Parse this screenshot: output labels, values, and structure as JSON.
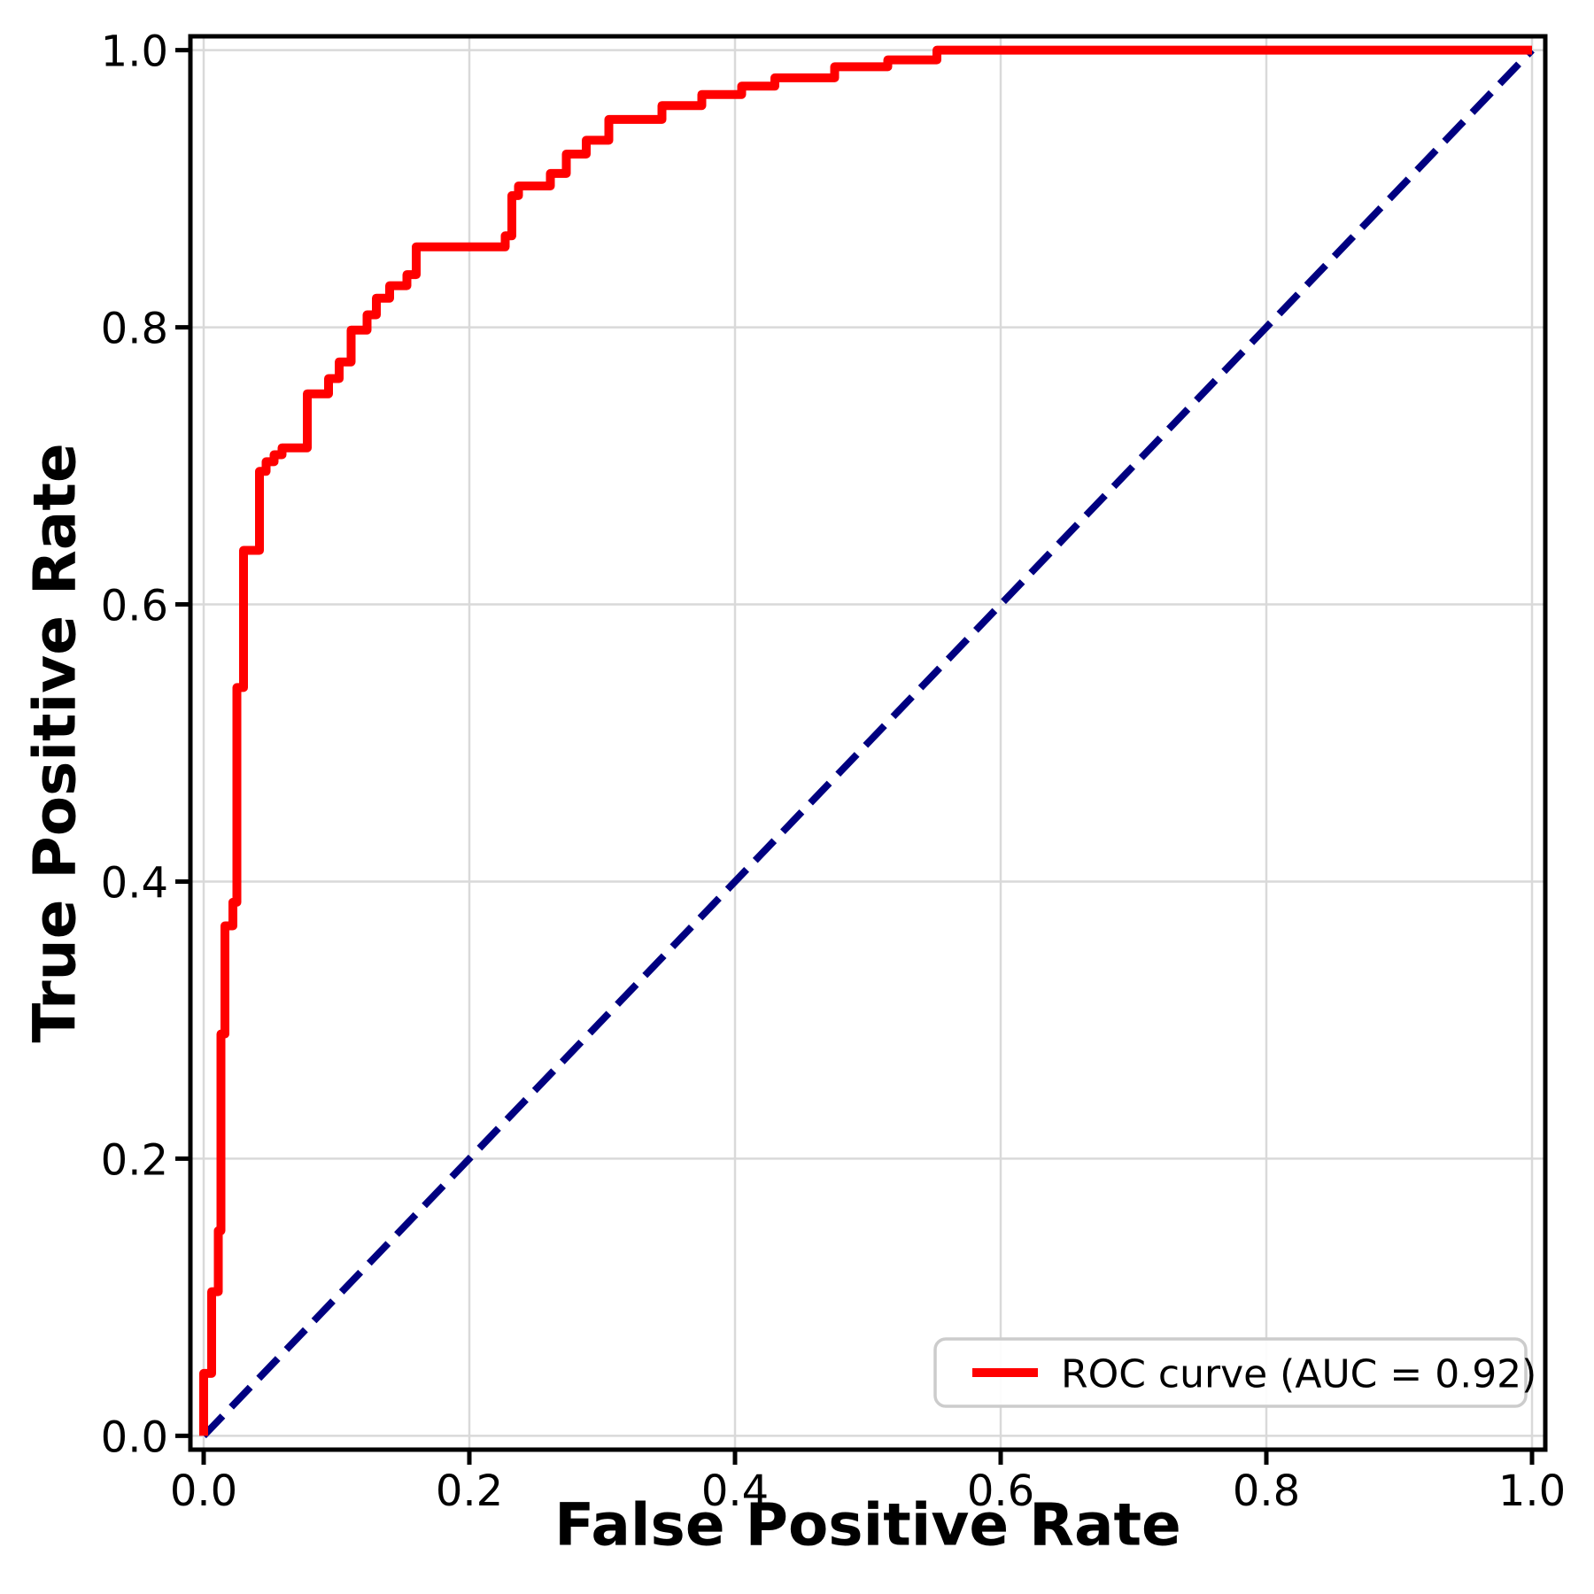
{
  "figure": {
    "background": "#ffffff",
    "plot_background": "#ffffff",
    "spine_color": "#000000",
    "grid_color": "#d9d9d9"
  },
  "legend": {
    "position": "lower right",
    "border_color": "#cccccc",
    "entries": [
      {
        "label": "ROC curve (AUC = 0.92)",
        "color": "#ff0000",
        "style": "solid"
      }
    ]
  },
  "chart_data": {
    "type": "line",
    "title": "",
    "xlabel": "False Positive Rate",
    "ylabel": "True Positive Rate",
    "xlim": [
      -0.01,
      1.01
    ],
    "ylim": [
      -0.01,
      1.01
    ],
    "grid": true,
    "legend_position": "lower right",
    "x_tick_labels": [
      "0.0",
      "0.2",
      "0.4",
      "0.6",
      "0.8",
      "1.0"
    ],
    "y_tick_labels": [
      "0.0",
      "0.2",
      "0.4",
      "0.6",
      "0.8",
      "1.0"
    ],
    "series": [
      {
        "name": "ROC curve (AUC = 0.92)",
        "auc": 0.92,
        "color": "#ff0000",
        "style": "solid",
        "line_width": 10,
        "points": [
          [
            0.0,
            0.0
          ],
          [
            0.0,
            0.045
          ],
          [
            0.006,
            0.045
          ],
          [
            0.006,
            0.104
          ],
          [
            0.011,
            0.104
          ],
          [
            0.011,
            0.148
          ],
          [
            0.013,
            0.148
          ],
          [
            0.013,
            0.29
          ],
          [
            0.016,
            0.29
          ],
          [
            0.016,
            0.368
          ],
          [
            0.022,
            0.368
          ],
          [
            0.022,
            0.385
          ],
          [
            0.025,
            0.385
          ],
          [
            0.025,
            0.54
          ],
          [
            0.03,
            0.54
          ],
          [
            0.03,
            0.639
          ],
          [
            0.042,
            0.639
          ],
          [
            0.042,
            0.696
          ],
          [
            0.047,
            0.696
          ],
          [
            0.047,
            0.703
          ],
          [
            0.053,
            0.703
          ],
          [
            0.053,
            0.708
          ],
          [
            0.059,
            0.708
          ],
          [
            0.059,
            0.713
          ],
          [
            0.078,
            0.713
          ],
          [
            0.078,
            0.752
          ],
          [
            0.094,
            0.752
          ],
          [
            0.094,
            0.763
          ],
          [
            0.102,
            0.763
          ],
          [
            0.102,
            0.775
          ],
          [
            0.111,
            0.775
          ],
          [
            0.111,
            0.798
          ],
          [
            0.123,
            0.798
          ],
          [
            0.123,
            0.809
          ],
          [
            0.13,
            0.809
          ],
          [
            0.13,
            0.821
          ],
          [
            0.14,
            0.821
          ],
          [
            0.14,
            0.83
          ],
          [
            0.153,
            0.83
          ],
          [
            0.153,
            0.838
          ],
          [
            0.16,
            0.838
          ],
          [
            0.16,
            0.858
          ],
          [
            0.227,
            0.858
          ],
          [
            0.227,
            0.866
          ],
          [
            0.232,
            0.866
          ],
          [
            0.232,
            0.895
          ],
          [
            0.237,
            0.895
          ],
          [
            0.237,
            0.902
          ],
          [
            0.261,
            0.902
          ],
          [
            0.261,
            0.911
          ],
          [
            0.273,
            0.911
          ],
          [
            0.273,
            0.925
          ],
          [
            0.288,
            0.925
          ],
          [
            0.288,
            0.935
          ],
          [
            0.305,
            0.935
          ],
          [
            0.305,
            0.95
          ],
          [
            0.345,
            0.95
          ],
          [
            0.345,
            0.96
          ],
          [
            0.375,
            0.96
          ],
          [
            0.375,
            0.968
          ],
          [
            0.405,
            0.968
          ],
          [
            0.405,
            0.974
          ],
          [
            0.43,
            0.974
          ],
          [
            0.43,
            0.98
          ],
          [
            0.475,
            0.98
          ],
          [
            0.475,
            0.988
          ],
          [
            0.515,
            0.988
          ],
          [
            0.515,
            0.993
          ],
          [
            0.552,
            0.993
          ],
          [
            0.552,
            1.0
          ],
          [
            1.0,
            1.0
          ]
        ]
      },
      {
        "name": "chance-diagonal",
        "color": "#000080",
        "style": "dashed",
        "line_width": 8,
        "points": [
          [
            0.0,
            0.0
          ],
          [
            1.0,
            1.0
          ]
        ]
      }
    ]
  }
}
